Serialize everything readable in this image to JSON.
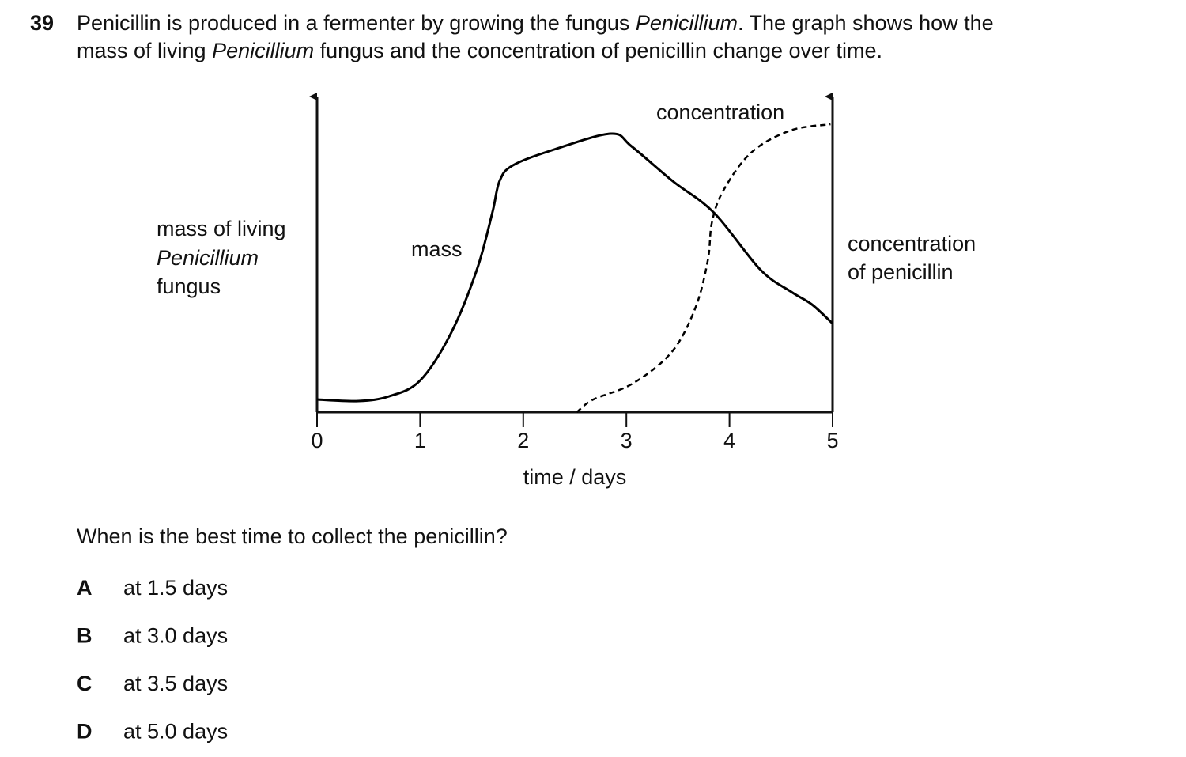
{
  "question": {
    "number": "39",
    "line1": [
      "Penicillin is produced in a fermenter by growing the fungus ",
      "Penicillium",
      ". The graph shows how the"
    ],
    "line2": [
      "mass of living ",
      "Penicillium",
      " fungus and the concentration of penicillin change over time."
    ],
    "prompt": "When is the best time to collect the penicillin?",
    "options": [
      {
        "letter": "A",
        "text": "at 1.5 days"
      },
      {
        "letter": "B",
        "text": "at 3.0 days"
      },
      {
        "letter": "C",
        "text": "at 3.5 days"
      },
      {
        "letter": "D",
        "text": "at 5.0 days"
      }
    ]
  },
  "chart_data": {
    "type": "line",
    "y_label": [
      "mass of living",
      "Penicillium",
      "fungus"
    ],
    "y2_label": [
      "concentration",
      "of penicillin"
    ],
    "x_label": "time / days",
    "xlim": [
      0,
      5
    ],
    "xticks": [
      0,
      1,
      2,
      3,
      4,
      5
    ],
    "ylim": [
      0,
      100
    ],
    "y2lim": [
      0,
      100
    ],
    "series": [
      {
        "name": "mass",
        "color": "#000000",
        "dashed": false,
        "x": [
          0,
          0.4,
          0.7,
          1.0,
          1.3,
          1.55,
          1.7,
          1.77,
          1.9,
          2.3,
          2.85,
          3.05,
          3.45,
          3.85,
          4.3,
          4.6,
          4.8,
          5.0
        ],
        "values": [
          4,
          3.5,
          5,
          10,
          25,
          45,
          63,
          73,
          78,
          83,
          88,
          84,
          73,
          63,
          45,
          38,
          34,
          28
        ]
      },
      {
        "name": "concentration",
        "color": "#000000",
        "dashed": true,
        "axis": "y2",
        "x": [
          2.52,
          2.68,
          3.06,
          3.44,
          3.67,
          3.79,
          3.83,
          3.94,
          4.21,
          4.59,
          4.98
        ],
        "values": [
          0,
          4,
          9,
          19,
          33,
          48,
          60,
          70,
          82,
          89,
          91
        ]
      }
    ]
  }
}
